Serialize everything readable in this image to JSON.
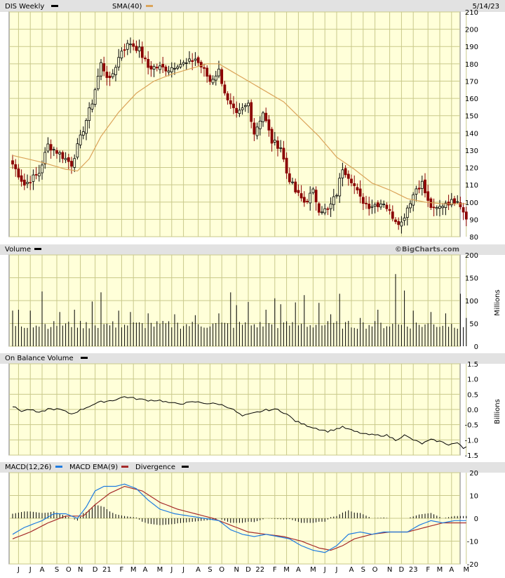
{
  "chart_data": [
    {
      "panel": "price",
      "type": "candlestick",
      "symbol_label": "DIS Weekly",
      "overlay_label": "SMA(40)",
      "date": "5/14/23",
      "watermark": "©BigCharts.com",
      "ylim": [
        80,
        210
      ],
      "yticks": [
        80,
        90,
        100,
        110,
        120,
        130,
        140,
        150,
        160,
        170,
        180,
        190,
        200,
        210
      ],
      "close_anchors": [
        {
          "i": 0,
          "v": 122
        },
        {
          "i": 4,
          "v": 110
        },
        {
          "i": 9,
          "v": 117
        },
        {
          "i": 12,
          "v": 133
        },
        {
          "i": 16,
          "v": 128
        },
        {
          "i": 20,
          "v": 122
        },
        {
          "i": 23,
          "v": 137
        },
        {
          "i": 27,
          "v": 158
        },
        {
          "i": 30,
          "v": 180
        },
        {
          "i": 33,
          "v": 170
        },
        {
          "i": 37,
          "v": 188
        },
        {
          "i": 40,
          "v": 192
        },
        {
          "i": 43,
          "v": 188
        },
        {
          "i": 46,
          "v": 178
        },
        {
          "i": 49,
          "v": 178
        },
        {
          "i": 53,
          "v": 177
        },
        {
          "i": 56,
          "v": 180
        },
        {
          "i": 59,
          "v": 180
        },
        {
          "i": 62,
          "v": 183
        },
        {
          "i": 65,
          "v": 176
        },
        {
          "i": 67,
          "v": 170
        },
        {
          "i": 70,
          "v": 176
        },
        {
          "i": 73,
          "v": 158
        },
        {
          "i": 76,
          "v": 150
        },
        {
          "i": 80,
          "v": 157
        },
        {
          "i": 82,
          "v": 140
        },
        {
          "i": 85,
          "v": 152
        },
        {
          "i": 88,
          "v": 135
        },
        {
          "i": 91,
          "v": 132
        },
        {
          "i": 93,
          "v": 117
        },
        {
          "i": 96,
          "v": 106
        },
        {
          "i": 99,
          "v": 100
        },
        {
          "i": 102,
          "v": 106
        },
        {
          "i": 104,
          "v": 96
        },
        {
          "i": 107,
          "v": 95
        },
        {
          "i": 110,
          "v": 105
        },
        {
          "i": 112,
          "v": 120
        },
        {
          "i": 115,
          "v": 113
        },
        {
          "i": 118,
          "v": 102
        },
        {
          "i": 121,
          "v": 98
        },
        {
          "i": 124,
          "v": 99
        },
        {
          "i": 126,
          "v": 100
        },
        {
          "i": 128,
          "v": 94
        },
        {
          "i": 130,
          "v": 90
        },
        {
          "i": 132,
          "v": 88
        },
        {
          "i": 134,
          "v": 97
        },
        {
          "i": 137,
          "v": 108
        },
        {
          "i": 139,
          "v": 111
        },
        {
          "i": 141,
          "v": 100
        },
        {
          "i": 143,
          "v": 95
        },
        {
          "i": 145,
          "v": 97
        },
        {
          "i": 147,
          "v": 100
        },
        {
          "i": 149,
          "v": 100
        },
        {
          "i": 151,
          "v": 102
        },
        {
          "i": 153,
          "v": 95
        },
        {
          "i": 154,
          "v": 92
        }
      ],
      "sma_anchors": [
        {
          "i": 0,
          "v": 127
        },
        {
          "i": 10,
          "v": 123
        },
        {
          "i": 18,
          "v": 119
        },
        {
          "i": 22,
          "v": 118
        },
        {
          "i": 26,
          "v": 125
        },
        {
          "i": 30,
          "v": 138
        },
        {
          "i": 36,
          "v": 152
        },
        {
          "i": 42,
          "v": 163
        },
        {
          "i": 48,
          "v": 170
        },
        {
          "i": 54,
          "v": 174
        },
        {
          "i": 60,
          "v": 177
        },
        {
          "i": 66,
          "v": 180
        },
        {
          "i": 70,
          "v": 180
        },
        {
          "i": 74,
          "v": 176
        },
        {
          "i": 80,
          "v": 170
        },
        {
          "i": 86,
          "v": 164
        },
        {
          "i": 92,
          "v": 158
        },
        {
          "i": 98,
          "v": 148
        },
        {
          "i": 104,
          "v": 138
        },
        {
          "i": 110,
          "v": 126
        },
        {
          "i": 116,
          "v": 119
        },
        {
          "i": 122,
          "v": 111
        },
        {
          "i": 128,
          "v": 107
        },
        {
          "i": 134,
          "v": 102
        },
        {
          "i": 140,
          "v": 100
        },
        {
          "i": 146,
          "v": 99
        },
        {
          "i": 154,
          "v": 99
        }
      ]
    },
    {
      "panel": "volume",
      "type": "bar",
      "label": "Volume",
      "unit_label": "Millions",
      "ylim": [
        0,
        200
      ],
      "yticks": [
        0,
        50,
        100,
        150,
        200
      ],
      "spikes": [
        {
          "i": 0,
          "v": 78
        },
        {
          "i": 2,
          "v": 80
        },
        {
          "i": 6,
          "v": 78
        },
        {
          "i": 10,
          "v": 120
        },
        {
          "i": 16,
          "v": 75
        },
        {
          "i": 21,
          "v": 80
        },
        {
          "i": 27,
          "v": 98
        },
        {
          "i": 30,
          "v": 118
        },
        {
          "i": 36,
          "v": 78
        },
        {
          "i": 40,
          "v": 75
        },
        {
          "i": 46,
          "v": 72
        },
        {
          "i": 55,
          "v": 70
        },
        {
          "i": 62,
          "v": 68
        },
        {
          "i": 70,
          "v": 72
        },
        {
          "i": 74,
          "v": 118
        },
        {
          "i": 76,
          "v": 90
        },
        {
          "i": 80,
          "v": 97
        },
        {
          "i": 86,
          "v": 80
        },
        {
          "i": 89,
          "v": 105
        },
        {
          "i": 91,
          "v": 92
        },
        {
          "i": 96,
          "v": 96
        },
        {
          "i": 99,
          "v": 112
        },
        {
          "i": 104,
          "v": 95
        },
        {
          "i": 108,
          "v": 70
        },
        {
          "i": 111,
          "v": 115
        },
        {
          "i": 118,
          "v": 62
        },
        {
          "i": 124,
          "v": 80
        },
        {
          "i": 130,
          "v": 158
        },
        {
          "i": 133,
          "v": 122
        },
        {
          "i": 136,
          "v": 78
        },
        {
          "i": 142,
          "v": 75
        },
        {
          "i": 147,
          "v": 72
        },
        {
          "i": 152,
          "v": 115
        },
        {
          "i": 154,
          "v": 62
        }
      ]
    },
    {
      "panel": "obv",
      "type": "line",
      "label": "On Balance Volume",
      "unit_label": "Billions",
      "ylim": [
        -1.5,
        1.5
      ],
      "yticks": [
        1.5,
        1.0,
        0.5,
        0.0,
        -0.5,
        -1.0,
        -1.5
      ],
      "tick_labels": [
        "1.5",
        "1.0",
        "0.5",
        "0.0",
        "-0.5",
        "-1.0",
        "-1.5"
      ],
      "anchors": [
        {
          "i": 0,
          "v": 0.1
        },
        {
          "i": 3,
          "v": -0.05
        },
        {
          "i": 6,
          "v": 0.0
        },
        {
          "i": 9,
          "v": -0.12
        },
        {
          "i": 12,
          "v": 0.02
        },
        {
          "i": 16,
          "v": 0.0
        },
        {
          "i": 20,
          "v": -0.15
        },
        {
          "i": 23,
          "v": -0.02
        },
        {
          "i": 27,
          "v": 0.15
        },
        {
          "i": 30,
          "v": 0.25
        },
        {
          "i": 34,
          "v": 0.3
        },
        {
          "i": 38,
          "v": 0.42
        },
        {
          "i": 42,
          "v": 0.35
        },
        {
          "i": 46,
          "v": 0.3
        },
        {
          "i": 50,
          "v": 0.3
        },
        {
          "i": 54,
          "v": 0.2
        },
        {
          "i": 58,
          "v": 0.2
        },
        {
          "i": 62,
          "v": 0.25
        },
        {
          "i": 66,
          "v": 0.2
        },
        {
          "i": 70,
          "v": 0.18
        },
        {
          "i": 74,
          "v": 0.05
        },
        {
          "i": 78,
          "v": -0.22
        },
        {
          "i": 82,
          "v": -0.12
        },
        {
          "i": 86,
          "v": -0.02
        },
        {
          "i": 90,
          "v": 0.0
        },
        {
          "i": 93,
          "v": -0.15
        },
        {
          "i": 96,
          "v": -0.38
        },
        {
          "i": 99,
          "v": -0.5
        },
        {
          "i": 103,
          "v": -0.62
        },
        {
          "i": 107,
          "v": -0.72
        },
        {
          "i": 112,
          "v": -0.58
        },
        {
          "i": 116,
          "v": -0.72
        },
        {
          "i": 120,
          "v": -0.82
        },
        {
          "i": 124,
          "v": -0.85
        },
        {
          "i": 127,
          "v": -0.85
        },
        {
          "i": 130,
          "v": -1.0
        },
        {
          "i": 133,
          "v": -0.85
        },
        {
          "i": 136,
          "v": -1.0
        },
        {
          "i": 139,
          "v": -1.12
        },
        {
          "i": 142,
          "v": -1.0
        },
        {
          "i": 145,
          "v": -1.05
        },
        {
          "i": 148,
          "v": -1.15
        },
        {
          "i": 151,
          "v": -1.1
        },
        {
          "i": 153,
          "v": -1.28
        },
        {
          "i": 154,
          "v": -1.22
        }
      ]
    },
    {
      "panel": "macd",
      "type": "line",
      "label": "MACD(12,26)",
      "ema_label": "MACD EMA(9)",
      "divergence_label": "Divergence",
      "ylim": [
        -20,
        20
      ],
      "yticks": [
        20,
        10,
        0,
        -10,
        -20
      ],
      "macd_anchors": [
        {
          "i": 0,
          "v": -7
        },
        {
          "i": 4,
          "v": -4
        },
        {
          "i": 10,
          "v": -1
        },
        {
          "i": 14,
          "v": 2
        },
        {
          "i": 18,
          "v": 2
        },
        {
          "i": 22,
          "v": 0
        },
        {
          "i": 25,
          "v": 5
        },
        {
          "i": 28,
          "v": 12
        },
        {
          "i": 31,
          "v": 14
        },
        {
          "i": 35,
          "v": 14
        },
        {
          "i": 38,
          "v": 15
        },
        {
          "i": 42,
          "v": 13
        },
        {
          "i": 46,
          "v": 8
        },
        {
          "i": 50,
          "v": 4
        },
        {
          "i": 55,
          "v": 2
        },
        {
          "i": 60,
          "v": 1
        },
        {
          "i": 65,
          "v": 0
        },
        {
          "i": 70,
          "v": -1
        },
        {
          "i": 74,
          "v": -5
        },
        {
          "i": 78,
          "v": -7
        },
        {
          "i": 82,
          "v": -8
        },
        {
          "i": 86,
          "v": -7
        },
        {
          "i": 90,
          "v": -8
        },
        {
          "i": 94,
          "v": -9
        },
        {
          "i": 98,
          "v": -12
        },
        {
          "i": 102,
          "v": -14
        },
        {
          "i": 106,
          "v": -15
        },
        {
          "i": 110,
          "v": -12
        },
        {
          "i": 114,
          "v": -7
        },
        {
          "i": 118,
          "v": -6
        },
        {
          "i": 122,
          "v": -7
        },
        {
          "i": 126,
          "v": -6
        },
        {
          "i": 130,
          "v": -6
        },
        {
          "i": 134,
          "v": -6
        },
        {
          "i": 138,
          "v": -3
        },
        {
          "i": 142,
          "v": -1
        },
        {
          "i": 146,
          "v": -2
        },
        {
          "i": 150,
          "v": -1
        },
        {
          "i": 154,
          "v": -1
        }
      ],
      "signal_anchors": [
        {
          "i": 0,
          "v": -9
        },
        {
          "i": 6,
          "v": -6
        },
        {
          "i": 12,
          "v": -2
        },
        {
          "i": 18,
          "v": 1
        },
        {
          "i": 24,
          "v": 1
        },
        {
          "i": 28,
          "v": 6
        },
        {
          "i": 33,
          "v": 11
        },
        {
          "i": 38,
          "v": 14
        },
        {
          "i": 44,
          "v": 12
        },
        {
          "i": 50,
          "v": 7
        },
        {
          "i": 56,
          "v": 4
        },
        {
          "i": 62,
          "v": 2
        },
        {
          "i": 68,
          "v": 0
        },
        {
          "i": 74,
          "v": -3
        },
        {
          "i": 80,
          "v": -6
        },
        {
          "i": 86,
          "v": -7
        },
        {
          "i": 92,
          "v": -8
        },
        {
          "i": 98,
          "v": -10
        },
        {
          "i": 104,
          "v": -13
        },
        {
          "i": 108,
          "v": -14
        },
        {
          "i": 112,
          "v": -12
        },
        {
          "i": 116,
          "v": -9
        },
        {
          "i": 122,
          "v": -7
        },
        {
          "i": 128,
          "v": -6
        },
        {
          "i": 134,
          "v": -6
        },
        {
          "i": 140,
          "v": -4
        },
        {
          "i": 146,
          "v": -2
        },
        {
          "i": 154,
          "v": -2
        }
      ]
    }
  ],
  "x_axis": {
    "labels": [
      {
        "i": 2,
        "t": "J"
      },
      {
        "i": 6,
        "t": "J"
      },
      {
        "i": 10,
        "t": "A"
      },
      {
        "i": 15,
        "t": "S"
      },
      {
        "i": 19,
        "t": "O"
      },
      {
        "i": 23,
        "t": "N"
      },
      {
        "i": 28,
        "t": "D"
      },
      {
        "i": 32,
        "t": "21"
      },
      {
        "i": 37,
        "t": "F"
      },
      {
        "i": 41,
        "t": "M"
      },
      {
        "i": 45,
        "t": "A"
      },
      {
        "i": 50,
        "t": "M"
      },
      {
        "i": 54,
        "t": "J"
      },
      {
        "i": 58,
        "t": "J"
      },
      {
        "i": 63,
        "t": "A"
      },
      {
        "i": 67,
        "t": "S"
      },
      {
        "i": 71,
        "t": "O"
      },
      {
        "i": 76,
        "t": "N"
      },
      {
        "i": 80,
        "t": "D"
      },
      {
        "i": 84,
        "t": "22"
      },
      {
        "i": 89,
        "t": "F"
      },
      {
        "i": 93,
        "t": "M"
      },
      {
        "i": 97,
        "t": "A"
      },
      {
        "i": 102,
        "t": "M"
      },
      {
        "i": 106,
        "t": "J"
      },
      {
        "i": 110,
        "t": "J"
      },
      {
        "i": 115,
        "t": "A"
      },
      {
        "i": 119,
        "t": "S"
      },
      {
        "i": 123,
        "t": "O"
      },
      {
        "i": 128,
        "t": "N"
      },
      {
        "i": 132,
        "t": "D"
      },
      {
        "i": 136,
        "t": "23"
      },
      {
        "i": 141,
        "t": "F"
      },
      {
        "i": 145,
        "t": "M"
      },
      {
        "i": 149,
        "t": "A"
      },
      {
        "i": 154,
        "t": "M"
      }
    ]
  },
  "colors": {
    "plot_bg": "#ffffd9",
    "grid": "#c9c98a",
    "header_bg": "#e2e2e2",
    "up": "#000000",
    "down": "#8b0000",
    "sma": "#dba45a",
    "macd": "#1f7ce0",
    "signal": "#a52a2a"
  }
}
